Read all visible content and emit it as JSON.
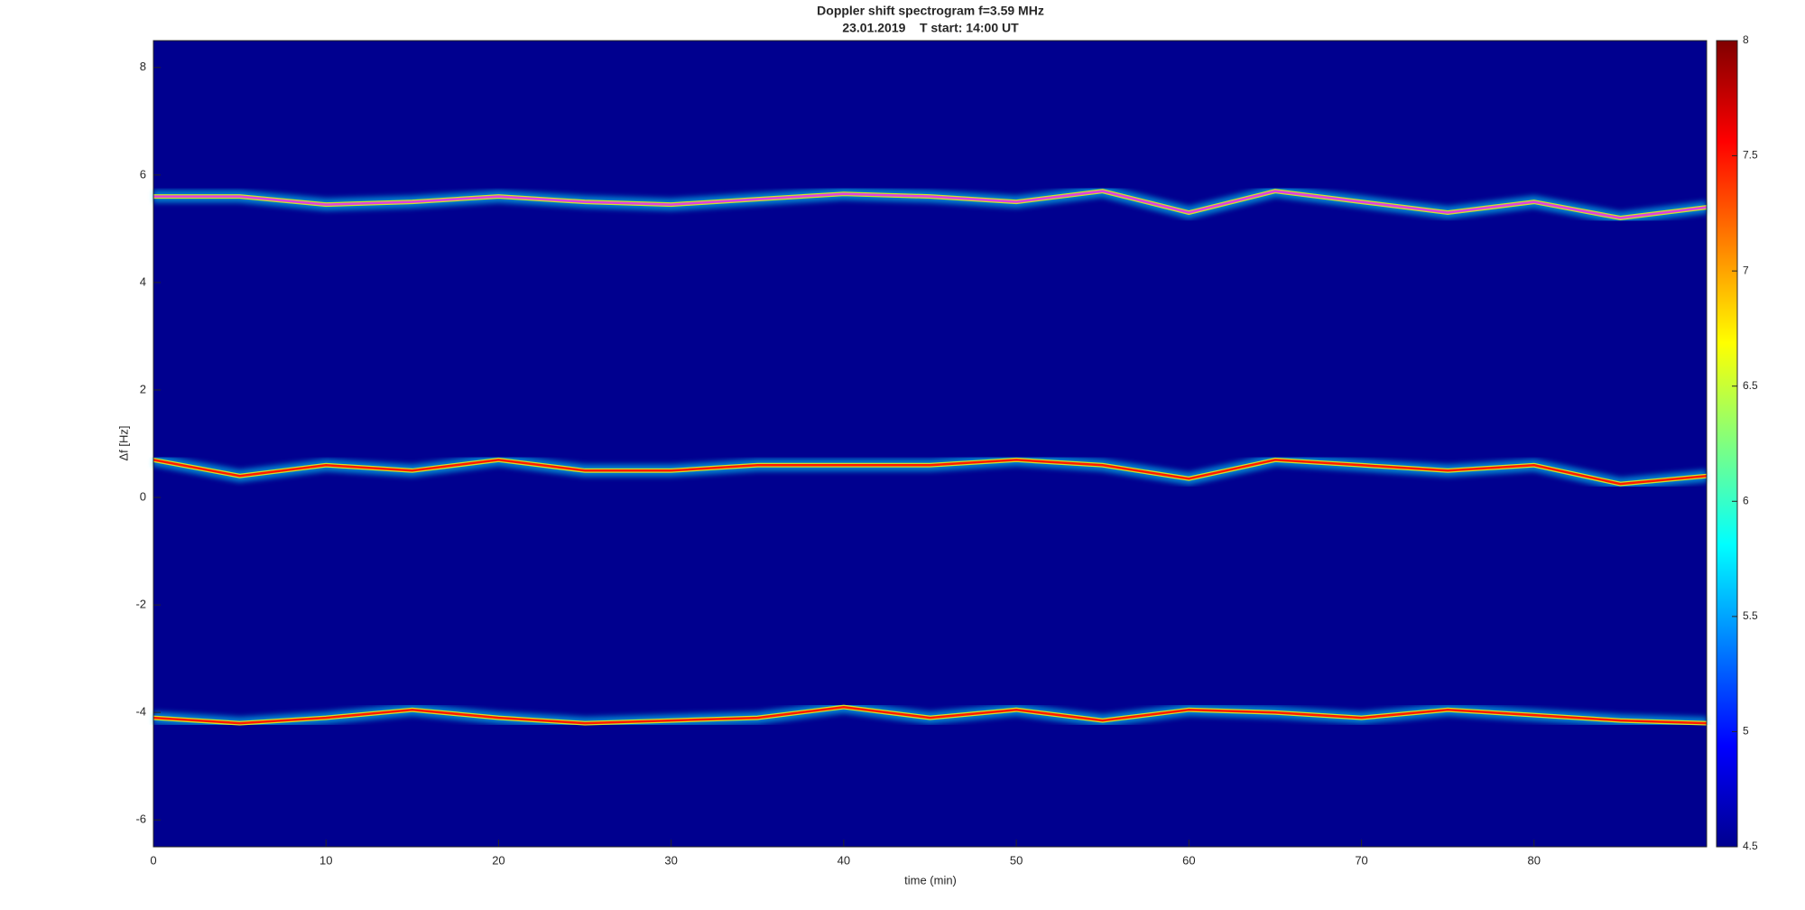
{
  "chart_data": {
    "type": "spectrogram",
    "title": "Doppler shift spectrogram f=3.59 MHz",
    "subtitle": "23.01.2019    T start: 14:00 UT",
    "xlabel": "time (min)",
    "ylabel": "Δf [Hz]",
    "x": [
      0,
      5,
      10,
      15,
      20,
      25,
      30,
      35,
      40,
      45,
      50,
      55,
      60,
      65,
      70,
      75,
      80,
      85,
      90
    ],
    "series": [
      {
        "color": "#e040e0",
        "values": [
          5.6,
          5.6,
          5.45,
          5.5,
          5.6,
          5.5,
          5.45,
          5.55,
          5.65,
          5.6,
          5.5,
          5.7,
          5.3,
          5.7,
          5.5,
          5.3,
          5.5,
          5.2,
          5.4
        ]
      },
      {
        "color": "#ff1a00",
        "values": [
          0.7,
          0.4,
          0.6,
          0.5,
          0.7,
          0.5,
          0.5,
          0.6,
          0.6,
          0.6,
          0.7,
          0.6,
          0.35,
          0.7,
          0.6,
          0.5,
          0.6,
          0.25,
          0.4
        ]
      },
      {
        "color": "#ff1a00",
        "values": [
          -4.1,
          -4.2,
          -4.1,
          -3.95,
          -4.1,
          -4.2,
          -4.15,
          -4.1,
          -3.9,
          -4.1,
          -3.95,
          -4.15,
          -3.95,
          -4.0,
          -4.1,
          -3.95,
          -4.05,
          -4.15,
          -4.2
        ]
      }
    ],
    "xlim": [
      0,
      90
    ],
    "xticks": [
      0,
      10,
      20,
      30,
      40,
      50,
      60,
      70,
      80
    ],
    "ylim": [
      -6.5,
      8.5
    ],
    "yticks": [
      -6,
      -4,
      -2,
      0,
      2,
      4,
      6,
      8
    ],
    "clim": [
      4.5,
      8
    ],
    "cticks": [
      4.5,
      5,
      5.5,
      6,
      6.5,
      7,
      7.5,
      8
    ],
    "background_color": "#00008f"
  }
}
